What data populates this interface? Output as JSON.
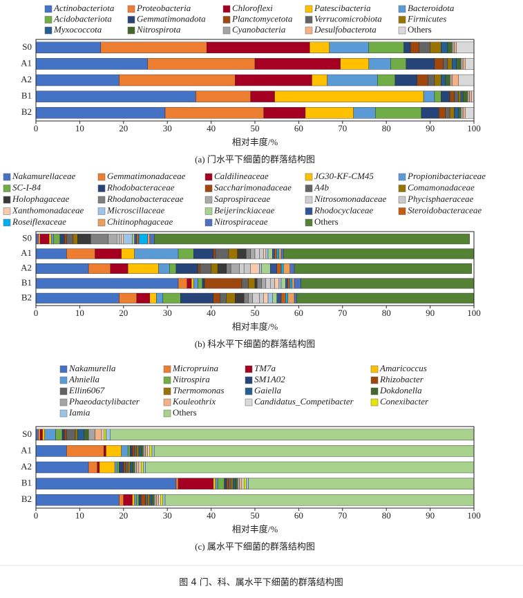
{
  "chart_data": [
    {
      "type": "bar",
      "orientation": "horizontal",
      "stacked": true,
      "xlabel": "相对丰度/%",
      "caption": "(a) 门水平下细菌的群落结构图",
      "categories": [
        "S0",
        "A1",
        "A2",
        "B1",
        "B2"
      ],
      "xlim": [
        0,
        100
      ],
      "xticks": [
        0,
        10,
        20,
        30,
        40,
        50,
        60,
        70,
        80,
        90,
        100
      ],
      "series": [
        {
          "name": "Actinobacteriota",
          "color": "#4472c4",
          "values": [
            14.8,
            25.5,
            19,
            36.5,
            29.5
          ]
        },
        {
          "name": "Proteobacteria",
          "color": "#ed7d31",
          "values": [
            24.2,
            24.5,
            26.5,
            12.5,
            22.5
          ]
        },
        {
          "name": "Chloroflexi",
          "color": "#a50021",
          "values": [
            23.5,
            19.5,
            17.5,
            5.5,
            9.5
          ]
        },
        {
          "name": "Patescibacteria",
          "color": "#ffc000",
          "values": [
            4.5,
            6.5,
            3.5,
            34,
            11
          ]
        },
        {
          "name": "Bacteroidota",
          "color": "#5b9bd5",
          "values": [
            9,
            5,
            11.5,
            2.5,
            5
          ]
        },
        {
          "name": "Acidobacteriota",
          "color": "#70ad47",
          "values": [
            8,
            3.5,
            4,
            1.5,
            10.5
          ]
        },
        {
          "name": "Gemmatimonadota",
          "color": "#264478",
          "values": [
            1.5,
            6.5,
            5,
            2,
            4
          ]
        },
        {
          "name": "Planctomycetota",
          "color": "#9e480e",
          "values": [
            2,
            2,
            2.5,
            1,
            1.5
          ]
        },
        {
          "name": "Verrucomicrobiota",
          "color": "#636363",
          "values": [
            2.5,
            1,
            1.5,
            1,
            1
          ]
        },
        {
          "name": "Firmicutes",
          "color": "#997300",
          "values": [
            2.5,
            1,
            1.5,
            0.5,
            1
          ]
        },
        {
          "name": "Myxococcota",
          "color": "#255e91",
          "values": [
            1.5,
            1,
            1,
            0.5,
            1
          ]
        },
        {
          "name": "Nitrospirota",
          "color": "#43682b",
          "values": [
            1,
            1,
            1,
            1,
            0.5
          ]
        },
        {
          "name": "Cyanobacteria",
          "color": "#a5a5a5",
          "values": [
            0.5,
            0.5,
            0.5,
            0.5,
            0.5
          ]
        },
        {
          "name": "Desulfobacterota",
          "color": "#f4b183",
          "values": [
            0.5,
            0.5,
            1.5,
            0.5,
            0.5
          ]
        },
        {
          "name": "Others",
          "color": "#d9d9d9",
          "values": [
            4,
            2,
            3.5,
            0.5,
            2
          ]
        }
      ]
    },
    {
      "type": "bar",
      "orientation": "horizontal",
      "stacked": true,
      "xlabel": "相对丰度/%",
      "caption": "(b) 科水平下细菌的群落结构图",
      "categories": [
        "S0",
        "A1",
        "A2",
        "B1",
        "B2"
      ],
      "xlim": [
        0,
        100
      ],
      "xticks": [
        0,
        10,
        20,
        30,
        40,
        50,
        60,
        70,
        80,
        90,
        100
      ],
      "series": [
        {
          "name": "Nakamurellaceae",
          "color": "#4472c4",
          "values": [
            0.5,
            7,
            12,
            32.5,
            19
          ]
        },
        {
          "name": "Gemmatimonadaceae",
          "color": "#ed7d31",
          "values": [
            0.5,
            6.5,
            5,
            2,
            4
          ]
        },
        {
          "name": "Caldilineaceae",
          "color": "#a50021",
          "values": [
            2,
            6,
            4,
            1,
            3
          ]
        },
        {
          "name": "JG30-KF-CM45",
          "color": "#ffc000",
          "values": [
            0.5,
            3,
            7,
            0.5,
            1.5
          ]
        },
        {
          "name": "Propionibacteriaceae",
          "color": "#5b9bd5",
          "values": [
            0.5,
            10,
            2.5,
            1,
            1.5
          ]
        },
        {
          "name": "SC-I-84",
          "color": "#70ad47",
          "values": [
            1.5,
            3.5,
            1.5,
            1,
            4
          ]
        },
        {
          "name": "Rhodobacteraceae",
          "color": "#264478",
          "values": [
            1,
            4.5,
            5,
            0.5,
            7.5
          ]
        },
        {
          "name": "Saccharimonadaceae",
          "color": "#9e480e",
          "values": [
            0.5,
            0.5,
            0.5,
            8.5,
            1.5
          ]
        },
        {
          "name": "A4b",
          "color": "#636363",
          "values": [
            1.5,
            3,
            2.5,
            1.5,
            1.5
          ]
        },
        {
          "name": "Comamonadaceae",
          "color": "#997300",
          "values": [
            1,
            2,
            1.5,
            1.5,
            2
          ]
        },
        {
          "name": "Holophagaceae",
          "color": "#3a3a3a",
          "values": [
            3,
            2,
            2,
            0.5,
            2
          ]
        },
        {
          "name": "Rhodanobacteraceae",
          "color": "#7f7f7f",
          "values": [
            4,
            1,
            1,
            1,
            1
          ]
        },
        {
          "name": "Saprospiraceae",
          "color": "#a9a9a9",
          "values": [
            2,
            1,
            2,
            1,
            1
          ]
        },
        {
          "name": "Nitrosomonadaceae",
          "color": "#d0cece",
          "values": [
            0.5,
            1,
            1,
            1,
            1.5
          ]
        },
        {
          "name": "Phycisphaeraceae",
          "color": "#c9c9c9",
          "values": [
            0.5,
            1,
            1.5,
            1,
            1
          ]
        },
        {
          "name": "Xanthomonadaceae",
          "color": "#f8cbad",
          "values": [
            0.5,
            0.5,
            2,
            1,
            1
          ]
        },
        {
          "name": "Microscillaceae",
          "color": "#9dc3e6",
          "values": [
            2,
            0.5,
            0.5,
            0.5,
            1
          ]
        },
        {
          "name": "Beijerinckiaceae",
          "color": "#a9d18e",
          "values": [
            0.5,
            1,
            2,
            1,
            1
          ]
        },
        {
          "name": "Rhodocyclaceae",
          "color": "#2f5597",
          "values": [
            0.5,
            0.5,
            1.5,
            0.5,
            1
          ]
        },
        {
          "name": "Steroidobacteraceae",
          "color": "#c55a11",
          "values": [
            0.5,
            0.5,
            1,
            0.5,
            1
          ]
        },
        {
          "name": "Roseiflexaceae",
          "color": "#00b0f0",
          "values": [
            2,
            0.5,
            0.5,
            0.5,
            0.5
          ]
        },
        {
          "name": "Chitinophagaceae",
          "color": "#e9a05a",
          "values": [
            0.5,
            0.5,
            1.5,
            0.5,
            1.5
          ]
        },
        {
          "name": "Nitrospiraceae",
          "color": "#4f6fbf",
          "values": [
            1,
            0.5,
            1,
            1.5,
            0.5
          ]
        },
        {
          "name": "Others",
          "color": "#548235",
          "values": [
            72,
            43.5,
            40.5,
            39.5,
            40.5
          ]
        }
      ]
    },
    {
      "type": "bar",
      "orientation": "horizontal",
      "stacked": true,
      "xlabel": "相对丰度/%",
      "caption": "(c) 属水平下细菌的群落结构图",
      "categories": [
        "S0",
        "A1",
        "A2",
        "B1",
        "B2"
      ],
      "xlim": [
        0,
        100
      ],
      "xticks": [
        0,
        10,
        20,
        30,
        40,
        50,
        60,
        70,
        80,
        90,
        100
      ],
      "series": [
        {
          "name": "Nakamurella",
          "color": "#4472c4",
          "values": [
            0.5,
            7,
            12,
            32,
            19
          ]
        },
        {
          "name": "Micropruina",
          "color": "#ed7d31",
          "values": [
            0.5,
            8.5,
            2,
            0.5,
            1
          ]
        },
        {
          "name": "TM7a",
          "color": "#a50021",
          "values": [
            0.5,
            0.5,
            0.5,
            8,
            2
          ]
        },
        {
          "name": "Amaricoccus",
          "color": "#ffc000",
          "values": [
            0.5,
            3.5,
            3.5,
            0.5,
            0.5
          ]
        },
        {
          "name": "Ahniella",
          "color": "#5b9bd5",
          "values": [
            2.5,
            1.5,
            0.5,
            0.5,
            0.5
          ]
        },
        {
          "name": "Nitrospira",
          "color": "#70ad47",
          "values": [
            1.5,
            0.5,
            0.5,
            1.5,
            0.5
          ]
        },
        {
          "name": "SM1A02",
          "color": "#264478",
          "values": [
            0.5,
            0.5,
            1,
            0.5,
            0.5
          ]
        },
        {
          "name": "Rhizobacter",
          "color": "#9e480e",
          "values": [
            0.5,
            0.5,
            0.5,
            0.5,
            1
          ]
        },
        {
          "name": "Ellin6067",
          "color": "#636363",
          "values": [
            2,
            0.5,
            0.5,
            0.5,
            0.5
          ]
        },
        {
          "name": "Thermomonas",
          "color": "#997300",
          "values": [
            0.5,
            0.5,
            0.5,
            0.5,
            0.5
          ]
        },
        {
          "name": "Gaiella",
          "color": "#255e91",
          "values": [
            1.5,
            0.5,
            0.5,
            0.5,
            0.5
          ]
        },
        {
          "name": "Dokdonella",
          "color": "#43682b",
          "values": [
            1,
            0.5,
            0.5,
            0.5,
            0.5
          ]
        },
        {
          "name": "Phaeodactylibacter",
          "color": "#a5a5a5",
          "values": [
            1.5,
            0.5,
            0.5,
            0.5,
            0.5
          ]
        },
        {
          "name": "Kouleothrix",
          "color": "#f4b183",
          "values": [
            1.5,
            0.5,
            0.5,
            0.5,
            0.5
          ]
        },
        {
          "name": "Candidatus_Competibacter",
          "color": "#d9d9d9",
          "values": [
            0.5,
            0.5,
            0.5,
            0.5,
            0.5
          ]
        },
        {
          "name": "Conexibacter",
          "color": "#e2e600",
          "values": [
            0.5,
            0.5,
            0.5,
            0.5,
            0.5
          ]
        },
        {
          "name": "Iamia",
          "color": "#9dc3e6",
          "values": [
            1,
            0.5,
            0.5,
            0.5,
            0.5
          ]
        },
        {
          "name": "Others",
          "color": "#a9d18e",
          "values": [
            83,
            73,
            75,
            51.5,
            70.5
          ]
        }
      ]
    }
  ],
  "figure_caption": "图 4 门、科、属水平下细菌的群落结构图"
}
